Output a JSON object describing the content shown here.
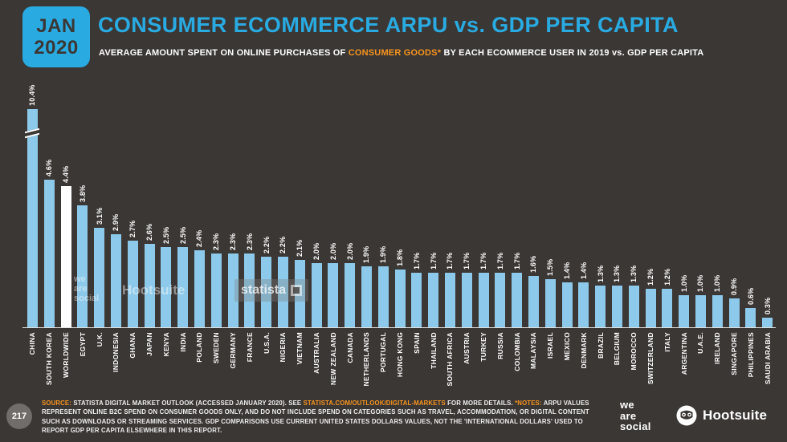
{
  "badge": {
    "month": "JAN",
    "year": "2020"
  },
  "header": {
    "title": "CONSUMER ECOMMERCE ARPU vs. GDP PER CAPITA",
    "subtitle_pre": "AVERAGE AMOUNT SPENT ON ONLINE PURCHASES OF ",
    "subtitle_highlight": "CONSUMER GOODS*",
    "subtitle_post": " BY EACH ECOMMERCE USER IN 2019 vs. GDP PER CAPITA"
  },
  "colors": {
    "background": "#3B3735",
    "accent_blue": "#29ABE2",
    "accent_orange": "#F7941E",
    "bar_blue": "#8DC9EA",
    "bar_highlight_white": "#FFFFFF"
  },
  "chart_data": {
    "type": "bar",
    "unit": "%",
    "title": "CONSUMER ECOMMERCE ARPU vs. GDP PER CAPITA",
    "categories": [
      "CHINA",
      "SOUTH KOREA",
      "WORLDWIDE",
      "EGYPT",
      "U.K.",
      "INDONESIA",
      "GHANA",
      "JAPAN",
      "KENYA",
      "INDIA",
      "POLAND",
      "SWEDEN",
      "GERMANY",
      "FRANCE",
      "U.S.A.",
      "NIGERIA",
      "VIETNAM",
      "AUSTRALIA",
      "NEW ZEALAND",
      "CANADA",
      "NETHERLANDS",
      "PORTUGAL",
      "HONG KONG",
      "SPAIN",
      "THAILAND",
      "SOUTH AFRICA",
      "AUSTRIA",
      "TURKEY",
      "RUSSIA",
      "COLOMBIA",
      "MALAYSIA",
      "ISRAEL",
      "MEXICO",
      "DENMARK",
      "BRAZIL",
      "BELGIUM",
      "MOROCCO",
      "SWITZERLAND",
      "ITALY",
      "ARGENTINA",
      "U.A.E.",
      "IRELAND",
      "SINGAPORE",
      "PHILIPPINES",
      "SAUDI ARABIA"
    ],
    "values": [
      10.4,
      4.6,
      4.4,
      3.8,
      3.1,
      2.9,
      2.7,
      2.6,
      2.5,
      2.5,
      2.4,
      2.3,
      2.3,
      2.3,
      2.2,
      2.2,
      2.1,
      2.0,
      2.0,
      2.0,
      1.9,
      1.9,
      1.8,
      1.7,
      1.7,
      1.7,
      1.7,
      1.7,
      1.7,
      1.7,
      1.6,
      1.5,
      1.4,
      1.4,
      1.3,
      1.3,
      1.3,
      1.2,
      1.2,
      1.0,
      1.0,
      1.0,
      0.9,
      0.6,
      0.3
    ],
    "value_labels": [
      "10.4%",
      "4.6%",
      "4.4%",
      "3.8%",
      "3.1%",
      "2.9%",
      "2.7%",
      "2.6%",
      "2.5%",
      "2.5%",
      "2.4%",
      "2.3%",
      "2.3%",
      "2.3%",
      "2.2%",
      "2.2%",
      "2.1%",
      "2.0%",
      "2.0%",
      "2.0%",
      "1.9%",
      "1.9%",
      "1.8%",
      "1.7%",
      "1.7%",
      "1.7%",
      "1.7%",
      "1.7%",
      "1.7%",
      "1.7%",
      "1.6%",
      "1.5%",
      "1.4%",
      "1.4%",
      "1.3%",
      "1.3%",
      "1.3%",
      "1.2%",
      "1.2%",
      "1.0%",
      "1.0%",
      "1.0%",
      "0.9%",
      "0.6%",
      "0.3%"
    ],
    "highlight_index": 2,
    "truncated_index": 0,
    "bar_color": "#8DC9EA",
    "highlight_color": "#FFFFFF",
    "ylim": [
      0,
      5
    ],
    "grid": false,
    "legend": "none"
  },
  "watermarks": {
    "we_are_social": [
      "we",
      "are",
      "social"
    ],
    "hootsuite": "Hootsuite",
    "statista": "statista"
  },
  "footer": {
    "page_number": "217",
    "segments": [
      {
        "text": "SOURCE: "
      },
      {
        "text": "STATISTA DIGITAL MARKET OUTLOOK (ACCESSED JANUARY 2020). SEE "
      },
      {
        "text": "STATISTA.COM/OUTLOOK/DIGITAL-MARKETS"
      },
      {
        "text": " FOR MORE DETAILS. "
      },
      {
        "text": "*NOTES: "
      },
      {
        "text": "ARPU VALUES REPRESENT ONLINE B2C SPEND ON CONSUMER GOODS ONLY, AND DO NOT INCLUDE SPEND ON CATEGORIES SUCH AS TRAVEL, ACCOMMODATION, OR DIGITAL CONTENT SUCH AS DOWNLOADS OR STREAMING SERVICES. GDP COMPARISONS USE CURRENT UNITED STATES DOLLARS VALUES, NOT THE 'INTERNATIONAL DOLLARS' USED TO REPORT GDP PER CAPITA ELSEWHERE IN THIS REPORT."
      }
    ]
  },
  "logos": {
    "we_are_social": [
      "we",
      "are",
      "social"
    ],
    "hootsuite": "Hootsuite"
  }
}
